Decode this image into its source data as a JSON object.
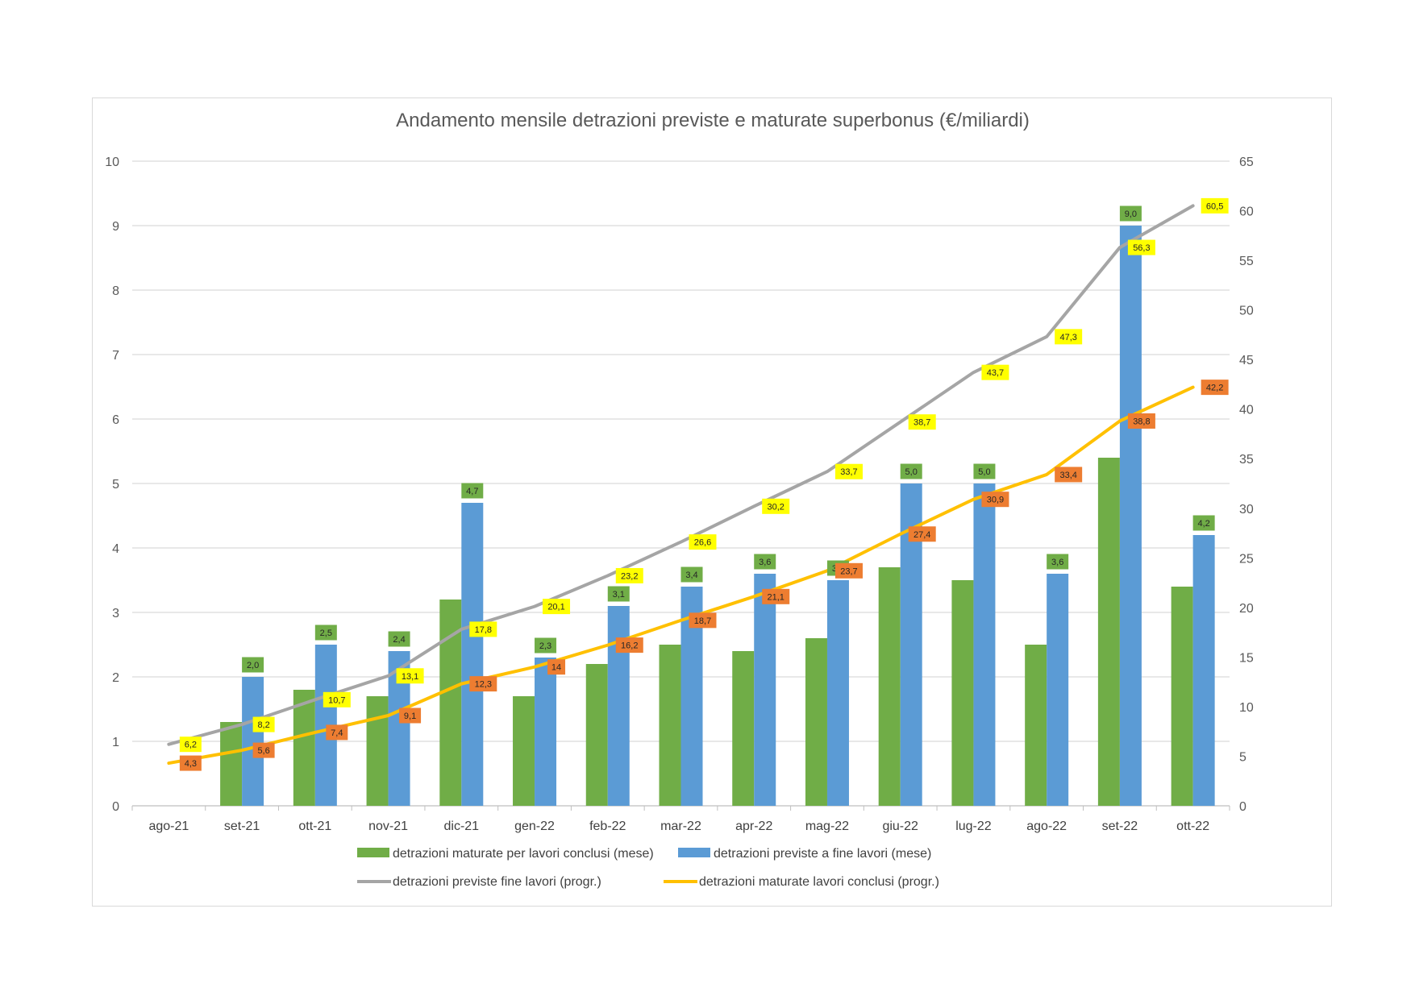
{
  "chart_data": {
    "type": "bar",
    "title": "Andamento mensile detrazioni previste e maturate superbonus (€/miliardi)",
    "categories": [
      "ago-21",
      "set-21",
      "ott-21",
      "nov-21",
      "dic-21",
      "gen-22",
      "feb-22",
      "mar-22",
      "apr-22",
      "mag-22",
      "giu-22",
      "lug-22",
      "ago-22",
      "set-22",
      "ott-22"
    ],
    "y_left": {
      "min": 0,
      "max": 10,
      "ticks": [
        "0",
        "1",
        "2",
        "3",
        "4",
        "5",
        "6",
        "7",
        "8",
        "9",
        "10"
      ]
    },
    "y_right": {
      "min": 0,
      "max": 65,
      "ticks": [
        "0",
        "5",
        "10",
        "15",
        "20",
        "25",
        "30",
        "35",
        "40",
        "45",
        "50",
        "55",
        "60",
        "65"
      ]
    },
    "grid": true,
    "legend_position": "bottom",
    "series": [
      {
        "name": "detrazioni maturate per lavori conclusi (mese)",
        "kind": "bar",
        "axis": "left",
        "color": "#70ad47",
        "values": [
          0,
          1.3,
          1.8,
          1.7,
          3.2,
          1.7,
          2.2,
          2.5,
          2.4,
          2.6,
          3.7,
          3.5,
          2.5,
          5.4,
          3.4
        ],
        "labels": [
          "",
          "",
          "",
          "",
          "",
          "",
          "",
          "",
          "",
          "",
          "",
          "",
          "",
          "",
          ""
        ]
      },
      {
        "name": "detrazioni previste a fine lavori (mese)",
        "kind": "bar",
        "axis": "left",
        "color": "#5b9bd5",
        "values": [
          0,
          2.0,
          2.5,
          2.4,
          4.7,
          2.3,
          3.1,
          3.4,
          3.6,
          3.5,
          5.0,
          5.0,
          3.6,
          9.0,
          4.2
        ],
        "labels": [
          "",
          "2,0",
          "2,5",
          "2,4",
          "4,7",
          "2,3",
          "3,1",
          "3,4",
          "3,6",
          "3,5",
          "5,0",
          "5,0",
          "3,6",
          "9,0",
          "4,2"
        ],
        "label_bg": "#70ad47"
      },
      {
        "name": "detrazioni previste fine lavori (progr.)",
        "kind": "line",
        "axis": "right",
        "color": "#a5a5a5",
        "values": [
          6.2,
          8.2,
          10.7,
          13.1,
          17.8,
          20.1,
          23.2,
          26.6,
          30.2,
          33.7,
          38.7,
          43.7,
          47.3,
          56.3,
          60.5
        ],
        "labels": [
          "6,2",
          "8,2",
          "10,7",
          "13,1",
          "17,8",
          "20,1",
          "23,2",
          "26,6",
          "30,2",
          "33,7",
          "38,7",
          "43,7",
          "47,3",
          "56,3",
          "60,5"
        ],
        "label_bg": "#ffff00"
      },
      {
        "name": "detrazioni maturate lavori conclusi (progr.)",
        "kind": "line",
        "axis": "right",
        "color": "#ffc000",
        "values": [
          4.3,
          5.6,
          7.4,
          9.1,
          12.3,
          14,
          16.2,
          18.7,
          21.1,
          23.7,
          27.4,
          30.9,
          33.4,
          38.8,
          42.2
        ],
        "labels": [
          "4,3",
          "5,6",
          "7,4",
          "9,1",
          "12,3",
          "14",
          "16,2",
          "18,7",
          "21,1",
          "23,7",
          "27,4",
          "30,9",
          "33,4",
          "38,8",
          "42,2"
        ],
        "label_bg": "#ed7d31"
      }
    ]
  }
}
